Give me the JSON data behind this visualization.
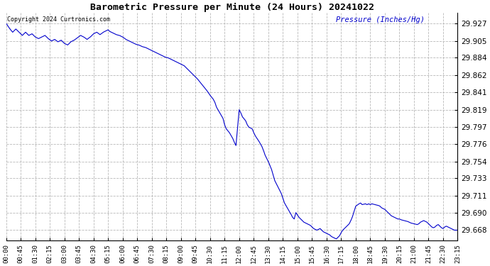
{
  "title": "Barometric Pressure per Minute (24 Hours) 20241022",
  "copyright_text": "Copyright 2024 Curtronics.com",
  "ylabel": "Pressure (Inches/Hg)",
  "background_color": "#ffffff",
  "line_color": "#0000cc",
  "ylabel_color": "#0000cc",
  "copyright_color": "#000000",
  "grid_color": "#b0b0b0",
  "title_color": "#000000",
  "yticks": [
    29.927,
    29.905,
    29.884,
    29.862,
    29.841,
    29.819,
    29.797,
    29.776,
    29.754,
    29.733,
    29.711,
    29.69,
    29.668
  ],
  "ylim": [
    29.655,
    29.94
  ],
  "xtick_labels": [
    "00:00",
    "00:45",
    "01:30",
    "02:15",
    "03:00",
    "03:45",
    "04:30",
    "05:15",
    "06:00",
    "06:45",
    "07:30",
    "08:15",
    "09:00",
    "09:45",
    "10:30",
    "11:15",
    "12:00",
    "12:45",
    "13:30",
    "14:15",
    "15:00",
    "15:45",
    "16:30",
    "17:15",
    "18:00",
    "18:45",
    "19:30",
    "20:15",
    "21:00",
    "21:45",
    "22:30",
    "23:15"
  ],
  "keypoints": [
    [
      0,
      29.927
    ],
    [
      10,
      29.921
    ],
    [
      20,
      29.916
    ],
    [
      30,
      29.92
    ],
    [
      40,
      29.916
    ],
    [
      50,
      29.912
    ],
    [
      60,
      29.916
    ],
    [
      70,
      29.912
    ],
    [
      80,
      29.914
    ],
    [
      90,
      29.91
    ],
    [
      100,
      29.908
    ],
    [
      110,
      29.91
    ],
    [
      120,
      29.912
    ],
    [
      130,
      29.908
    ],
    [
      140,
      29.905
    ],
    [
      150,
      29.907
    ],
    [
      160,
      29.904
    ],
    [
      170,
      29.906
    ],
    [
      180,
      29.902
    ],
    [
      190,
      29.9
    ],
    [
      200,
      29.904
    ],
    [
      210,
      29.906
    ],
    [
      220,
      29.909
    ],
    [
      230,
      29.912
    ],
    [
      240,
      29.91
    ],
    [
      250,
      29.907
    ],
    [
      260,
      29.91
    ],
    [
      270,
      29.914
    ],
    [
      280,
      29.916
    ],
    [
      290,
      29.913
    ],
    [
      300,
      29.916
    ],
    [
      310,
      29.918
    ],
    [
      315,
      29.919
    ],
    [
      320,
      29.917
    ],
    [
      330,
      29.915
    ],
    [
      340,
      29.913
    ],
    [
      350,
      29.912
    ],
    [
      360,
      29.91
    ],
    [
      370,
      29.907
    ],
    [
      380,
      29.905
    ],
    [
      390,
      29.903
    ],
    [
      400,
      29.901
    ],
    [
      410,
      29.9
    ],
    [
      420,
      29.898
    ],
    [
      430,
      29.897
    ],
    [
      440,
      29.895
    ],
    [
      450,
      29.893
    ],
    [
      460,
      29.891
    ],
    [
      470,
      29.889
    ],
    [
      480,
      29.887
    ],
    [
      490,
      29.885
    ],
    [
      500,
      29.884
    ],
    [
      510,
      29.882
    ],
    [
      520,
      29.88
    ],
    [
      530,
      29.878
    ],
    [
      540,
      29.876
    ],
    [
      550,
      29.874
    ],
    [
      555,
      29.872
    ],
    [
      560,
      29.87
    ],
    [
      570,
      29.866
    ],
    [
      575,
      29.864
    ],
    [
      580,
      29.862
    ],
    [
      590,
      29.858
    ],
    [
      600,
      29.853
    ],
    [
      610,
      29.848
    ],
    [
      620,
      29.843
    ],
    [
      630,
      29.837
    ],
    [
      640,
      29.832
    ],
    [
      645,
      29.828
    ],
    [
      650,
      29.822
    ],
    [
      660,
      29.815
    ],
    [
      670,
      29.808
    ],
    [
      675,
      29.8
    ],
    [
      680,
      29.795
    ],
    [
      690,
      29.79
    ],
    [
      700,
      29.783
    ],
    [
      705,
      29.778
    ],
    [
      710,
      29.774
    ],
    [
      720,
      29.819
    ],
    [
      725,
      29.815
    ],
    [
      730,
      29.81
    ],
    [
      740,
      29.805
    ],
    [
      745,
      29.8
    ],
    [
      750,
      29.797
    ],
    [
      760,
      29.795
    ],
    [
      765,
      29.79
    ],
    [
      770,
      29.786
    ],
    [
      780,
      29.78
    ],
    [
      790,
      29.773
    ],
    [
      795,
      29.768
    ],
    [
      800,
      29.762
    ],
    [
      810,
      29.754
    ],
    [
      820,
      29.744
    ],
    [
      825,
      29.737
    ],
    [
      830,
      29.73
    ],
    [
      840,
      29.722
    ],
    [
      850,
      29.714
    ],
    [
      855,
      29.708
    ],
    [
      860,
      29.702
    ],
    [
      870,
      29.695
    ],
    [
      880,
      29.688
    ],
    [
      885,
      29.684
    ],
    [
      890,
      29.682
    ],
    [
      895,
      29.69
    ],
    [
      900,
      29.687
    ],
    [
      905,
      29.684
    ],
    [
      910,
      29.682
    ],
    [
      915,
      29.68
    ],
    [
      920,
      29.678
    ],
    [
      930,
      29.676
    ],
    [
      940,
      29.674
    ],
    [
      945,
      29.672
    ],
    [
      950,
      29.67
    ],
    [
      960,
      29.668
    ],
    [
      970,
      29.67
    ],
    [
      975,
      29.668
    ],
    [
      980,
      29.666
    ],
    [
      990,
      29.664
    ],
    [
      1000,
      29.662
    ],
    [
      1005,
      29.66
    ],
    [
      1010,
      29.659
    ],
    [
      1020,
      29.657
    ],
    [
      1025,
      29.659
    ],
    [
      1030,
      29.661
    ],
    [
      1035,
      29.665
    ],
    [
      1040,
      29.668
    ],
    [
      1050,
      29.672
    ],
    [
      1060,
      29.676
    ],
    [
      1065,
      29.68
    ],
    [
      1070,
      29.685
    ],
    [
      1080,
      29.698
    ],
    [
      1090,
      29.701
    ],
    [
      1095,
      29.702
    ],
    [
      1100,
      29.7
    ],
    [
      1110,
      29.701
    ],
    [
      1115,
      29.7
    ],
    [
      1120,
      29.701
    ],
    [
      1125,
      29.7
    ],
    [
      1130,
      29.701
    ],
    [
      1140,
      29.7
    ],
    [
      1150,
      29.699
    ],
    [
      1155,
      29.698
    ],
    [
      1160,
      29.696
    ],
    [
      1170,
      29.694
    ],
    [
      1175,
      29.692
    ],
    [
      1180,
      29.69
    ],
    [
      1185,
      29.688
    ],
    [
      1190,
      29.686
    ],
    [
      1200,
      29.684
    ],
    [
      1205,
      29.683
    ],
    [
      1210,
      29.682
    ],
    [
      1215,
      29.682
    ],
    [
      1220,
      29.681
    ],
    [
      1230,
      29.68
    ],
    [
      1240,
      29.679
    ],
    [
      1245,
      29.678
    ],
    [
      1250,
      29.677
    ],
    [
      1260,
      29.676
    ],
    [
      1270,
      29.675
    ],
    [
      1275,
      29.676
    ],
    [
      1280,
      29.678
    ],
    [
      1285,
      29.679
    ],
    [
      1290,
      29.68
    ],
    [
      1295,
      29.679
    ],
    [
      1300,
      29.678
    ],
    [
      1305,
      29.676
    ],
    [
      1310,
      29.674
    ],
    [
      1315,
      29.672
    ],
    [
      1320,
      29.671
    ],
    [
      1325,
      29.672
    ],
    [
      1330,
      29.674
    ],
    [
      1335,
      29.675
    ],
    [
      1340,
      29.673
    ],
    [
      1345,
      29.671
    ],
    [
      1350,
      29.67
    ],
    [
      1355,
      29.672
    ],
    [
      1360,
      29.673
    ],
    [
      1365,
      29.672
    ],
    [
      1370,
      29.671
    ],
    [
      1375,
      29.67
    ],
    [
      1380,
      29.669
    ],
    [
      1385,
      29.668
    ],
    [
      1395,
      29.668
    ]
  ]
}
